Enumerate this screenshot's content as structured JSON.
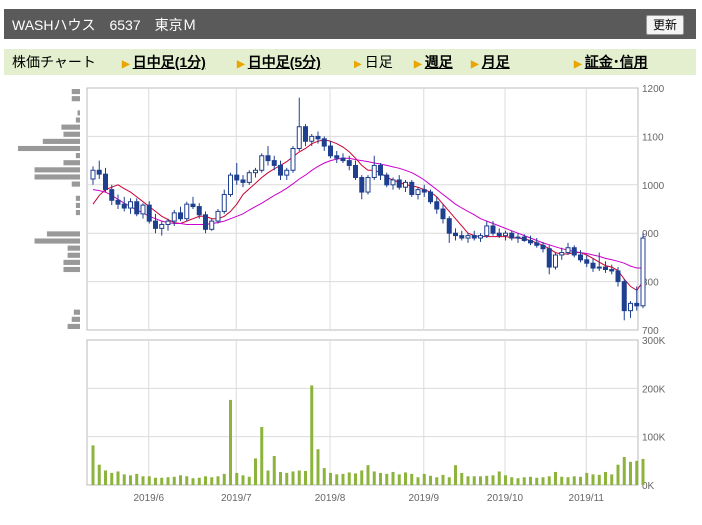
{
  "header": {
    "title": "WASHハウス　6537　東京Ｍ",
    "refresh_label": "更新"
  },
  "nav": {
    "chart_label": "株価チャート",
    "items": [
      {
        "label": "日中足(1分)",
        "type": "link"
      },
      {
        "label": "日中足(5分)",
        "type": "link"
      },
      {
        "label": "日足",
        "type": "plain"
      },
      {
        "label": "週足",
        "type": "link"
      },
      {
        "label": "月足",
        "type": "link"
      },
      {
        "label": "証金･信用",
        "type": "link"
      }
    ]
  },
  "colors": {
    "title_bar": "#5a5a5a",
    "nav_bg": "#e3efce",
    "arrow": "#e9a600",
    "candle": "#1f3f8f",
    "ma_short": "#cc0033",
    "ma_long": "#cc00cc",
    "volume": "#8cb33c",
    "vol_profile": "#999999",
    "grid": "#dcdcdc"
  },
  "chart_data": [
    {
      "type": "candlestick",
      "title": "",
      "y_ticks": [
        "1200",
        "1100",
        "1000",
        "900",
        "800",
        "700"
      ],
      "ylim": [
        700,
        1200
      ],
      "grid": true,
      "series": [
        {
          "values": [
            [
              1012,
              1038,
              1000,
              1030
            ],
            [
              1030,
              1050,
              1012,
              1022
            ],
            [
              1022,
              1035,
              985,
              990
            ],
            [
              990,
              1000,
              958,
              968
            ],
            [
              968,
              980,
              950,
              960
            ],
            [
              960,
              975,
              945,
              952
            ],
            [
              952,
              972,
              940,
              965
            ],
            [
              965,
              972,
              935,
              940
            ],
            [
              940,
              962,
              930,
              958
            ],
            [
              958,
              966,
              920,
              925
            ],
            [
              925,
              940,
              900,
              910
            ],
            [
              910,
              925,
              895,
              918
            ],
            [
              918,
              930,
              905,
              925
            ],
            [
              925,
              948,
              915,
              942
            ],
            [
              942,
              955,
              925,
              930
            ],
            [
              930,
              965,
              925,
              960
            ],
            [
              960,
              975,
              950,
              955
            ],
            [
              955,
              962,
              930,
              938
            ],
            [
              938,
              945,
              900,
              908
            ],
            [
              908,
              930,
              905,
              925
            ],
            [
              925,
              950,
              920,
              945
            ],
            [
              945,
              990,
              940,
              980
            ],
            [
              980,
              1025,
              975,
              1020
            ],
            [
              1020,
              1045,
              1000,
              1010
            ],
            [
              1010,
              1020,
              995,
              1005
            ],
            [
              1005,
              1030,
              1000,
              1025
            ],
            [
              1025,
              1035,
              1015,
              1030
            ],
            [
              1030,
              1065,
              1025,
              1060
            ],
            [
              1060,
              1080,
              1040,
              1050
            ],
            [
              1050,
              1060,
              1030,
              1040
            ],
            [
              1040,
              1050,
              1010,
              1020
            ],
            [
              1020,
              1035,
              1010,
              1030
            ],
            [
              1030,
              1080,
              1025,
              1075
            ],
            [
              1075,
              1180,
              1070,
              1120
            ],
            [
              1120,
              1125,
              1080,
              1090
            ],
            [
              1090,
              1105,
              1080,
              1100
            ],
            [
              1100,
              1110,
              1085,
              1095
            ],
            [
              1095,
              1100,
              1070,
              1080
            ],
            [
              1080,
              1090,
              1055,
              1060
            ],
            [
              1060,
              1070,
              1045,
              1055
            ],
            [
              1055,
              1065,
              1045,
              1050
            ],
            [
              1050,
              1060,
              1030,
              1040
            ],
            [
              1040,
              1050,
              1010,
              1015
            ],
            [
              1015,
              1020,
              970,
              985
            ],
            [
              985,
              1020,
              980,
              1015
            ],
            [
              1015,
              1060,
              1010,
              1040
            ],
            [
              1040,
              1045,
              1010,
              1020
            ],
            [
              1020,
              1025,
              995,
              1000
            ],
            [
              1000,
              1015,
              990,
              1010
            ],
            [
              1010,
              1020,
              990,
              995
            ],
            [
              995,
              1010,
              985,
              1005
            ],
            [
              1005,
              1010,
              975,
              980
            ],
            [
              980,
              995,
              970,
              990
            ],
            [
              990,
              1000,
              975,
              985
            ],
            [
              985,
              990,
              960,
              965
            ],
            [
              965,
              975,
              940,
              950
            ],
            [
              950,
              960,
              920,
              930
            ],
            [
              930,
              935,
              880,
              900
            ],
            [
              900,
              910,
              885,
              895
            ],
            [
              895,
              905,
              885,
              890
            ],
            [
              890,
              900,
              880,
              895
            ],
            [
              895,
              905,
              885,
              890
            ],
            [
              890,
              900,
              882,
              895
            ],
            [
              895,
              925,
              890,
              915
            ],
            [
              915,
              925,
              895,
              900
            ],
            [
              900,
              910,
              890,
              895
            ],
            [
              895,
              905,
              885,
              900
            ],
            [
              900,
              905,
              885,
              890
            ],
            [
              890,
              900,
              880,
              892
            ],
            [
              892,
              898,
              882,
              885
            ],
            [
              885,
              895,
              875,
              880
            ],
            [
              880,
              890,
              870,
              875
            ],
            [
              875,
              882,
              860,
              868
            ],
            [
              868,
              875,
              815,
              830
            ],
            [
              830,
              860,
              825,
              855
            ],
            [
              855,
              870,
              845,
              860
            ],
            [
              860,
              880,
              855,
              870
            ],
            [
              870,
              875,
              850,
              855
            ],
            [
              855,
              865,
              840,
              845
            ],
            [
              845,
              855,
              830,
              838
            ],
            [
              838,
              848,
              820,
              828
            ],
            [
              828,
              860,
              822,
              830
            ],
            [
              830,
              842,
              818,
              825
            ],
            [
              825,
              835,
              815,
              822
            ],
            [
              822,
              830,
              790,
              800
            ],
            [
              800,
              805,
              720,
              740
            ],
            [
              740,
              760,
              725,
              755
            ],
            [
              755,
              790,
              740,
              750
            ],
            [
              750,
              900,
              745,
              890
            ]
          ]
        },
        {
          "name": "",
          "values": [
            960,
            978,
            990,
            995,
            1000,
            992,
            985,
            975,
            965,
            955,
            945,
            935,
            928,
            922,
            920,
            925,
            930,
            935,
            935,
            930,
            930,
            935,
            945,
            960,
            980,
            992,
            1003,
            1015,
            1025,
            1033,
            1040,
            1048,
            1058,
            1068,
            1075,
            1085,
            1090,
            1093,
            1090,
            1085,
            1078,
            1068,
            1055,
            1040,
            1030,
            1030,
            1025,
            1015,
            1010,
            1005,
            1000,
            998,
            995,
            990,
            985,
            975,
            960,
            945,
            930,
            915,
            900,
            895,
            893,
            893,
            893,
            893,
            893,
            891,
            890,
            888,
            885,
            880,
            875,
            868,
            860,
            857,
            857,
            860,
            860,
            855,
            848,
            840,
            833,
            830,
            823,
            805,
            790,
            782,
            800
          ]
        },
        {
          "name": "",
          "values": [
            990,
            988,
            985,
            978,
            970,
            962,
            955,
            948,
            942,
            935,
            930,
            925,
            922,
            920,
            920,
            918,
            918,
            918,
            918,
            920,
            922,
            925,
            930,
            935,
            940,
            948,
            955,
            962,
            970,
            978,
            985,
            993,
            1002,
            1012,
            1020,
            1030,
            1038,
            1045,
            1050,
            1053,
            1055,
            1055,
            1052,
            1050,
            1048,
            1045,
            1043,
            1040,
            1037,
            1034,
            1030,
            1025,
            1018,
            1010,
            1000,
            990,
            980,
            970,
            960,
            952,
            945,
            938,
            930,
            925,
            920,
            915,
            910,
            905,
            900,
            895,
            890,
            885,
            880,
            876,
            872,
            868,
            865,
            862,
            860,
            858,
            855,
            852,
            848,
            845,
            842,
            838,
            832,
            828,
            828
          ]
        }
      ],
      "volume_profile": [
        2,
        2,
        0,
        0.6,
        1,
        4.5,
        4,
        9,
        15,
        1,
        4,
        11,
        11,
        2,
        0,
        1,
        1,
        1,
        0,
        0,
        8,
        11,
        3,
        3,
        4,
        4,
        0,
        0,
        0,
        0,
        0,
        1.5,
        2,
        3
      ]
    },
    {
      "type": "bar",
      "title": "",
      "x_ticks": [
        "2019/6",
        "2019/7",
        "2019/8",
        "2019/9",
        "2019/10",
        "2019/11"
      ],
      "y_ticks": [
        "300K",
        "200K",
        "100K",
        "0K"
      ],
      "ylim": [
        0,
        300000
      ],
      "grid": true,
      "values": [
        82000,
        42000,
        30000,
        25000,
        28000,
        22000,
        20000,
        23000,
        18000,
        18000,
        15000,
        15000,
        16000,
        17000,
        20000,
        18000,
        14000,
        15000,
        18000,
        16000,
        18000,
        23000,
        176000,
        25000,
        20000,
        17000,
        55000,
        120000,
        30000,
        60000,
        27000,
        25000,
        28000,
        30000,
        29000,
        206000,
        74000,
        35000,
        25000,
        22000,
        23000,
        26000,
        24000,
        30000,
        41000,
        28000,
        25000,
        23000,
        27000,
        22000,
        26000,
        23000,
        16000,
        23000,
        19000,
        16000,
        21000,
        16000,
        41000,
        25000,
        18000,
        18000,
        18000,
        19000,
        20000,
        28000,
        20000,
        16000,
        14000,
        16000,
        17000,
        15000,
        16000,
        18000,
        27000,
        17000,
        16000,
        18000,
        17000,
        25000,
        22000,
        21000,
        27000,
        22000,
        42000,
        58000,
        48000,
        50000,
        54000
      ]
    }
  ]
}
